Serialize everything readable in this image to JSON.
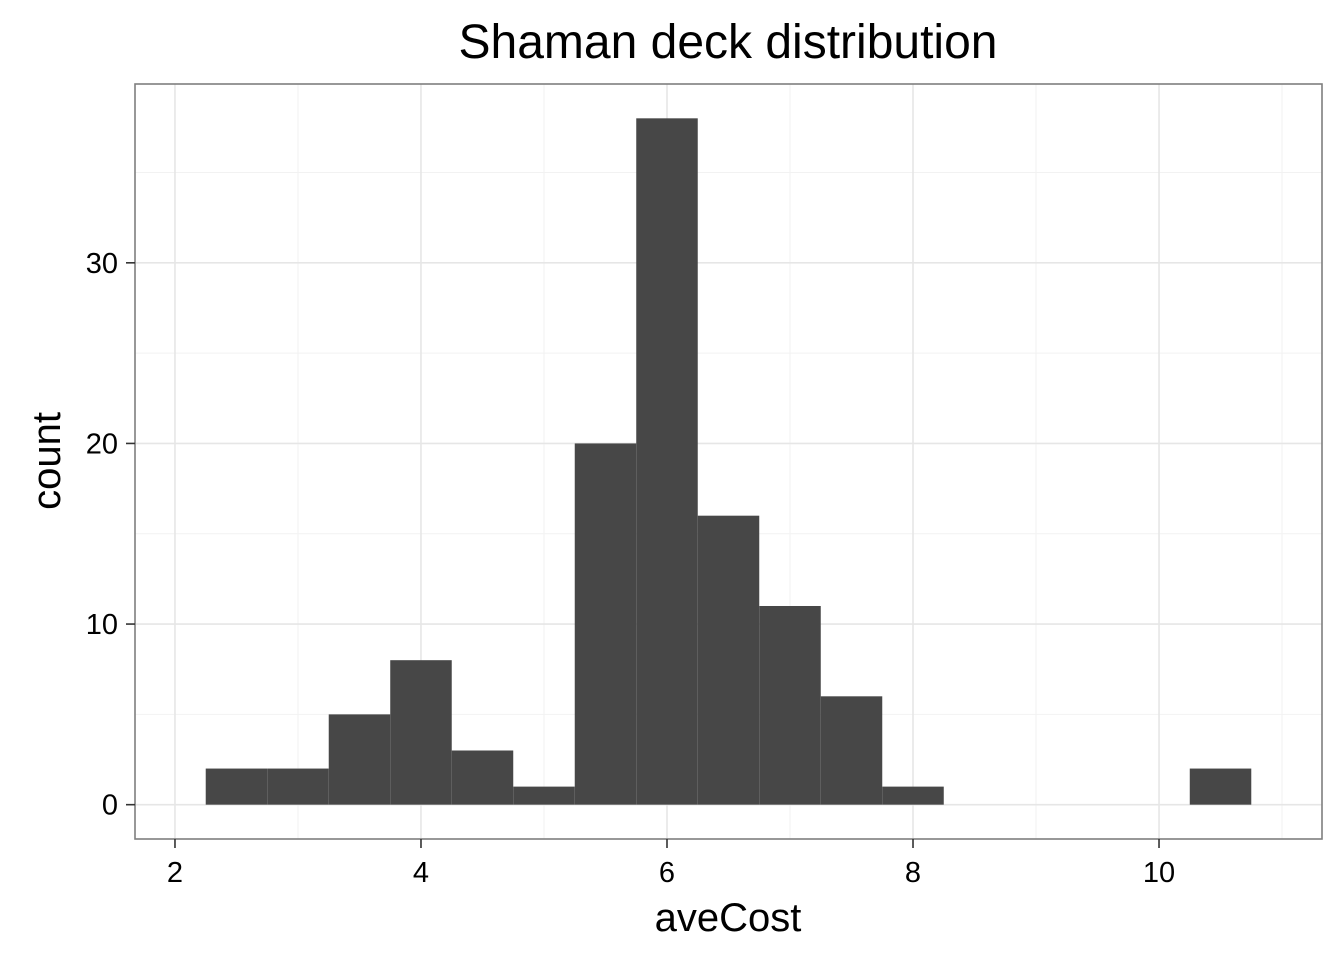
{
  "chart_data": {
    "type": "bar",
    "title": "Shaman deck distribution",
    "xlabel": "aveCost",
    "ylabel": "count",
    "binwidth": 0.5,
    "bins": [
      {
        "x_start": 2.25,
        "x_end": 2.75,
        "count": 2
      },
      {
        "x_start": 2.75,
        "x_end": 3.25,
        "count": 2
      },
      {
        "x_start": 3.25,
        "x_end": 3.75,
        "count": 5
      },
      {
        "x_start": 3.75,
        "x_end": 4.25,
        "count": 8
      },
      {
        "x_start": 4.25,
        "x_end": 4.75,
        "count": 3
      },
      {
        "x_start": 4.75,
        "x_end": 5.25,
        "count": 1
      },
      {
        "x_start": 5.25,
        "x_end": 5.75,
        "count": 20
      },
      {
        "x_start": 5.75,
        "x_end": 6.25,
        "count": 38
      },
      {
        "x_start": 6.25,
        "x_end": 6.75,
        "count": 16
      },
      {
        "x_start": 6.75,
        "x_end": 7.25,
        "count": 11
      },
      {
        "x_start": 7.25,
        "x_end": 7.75,
        "count": 6
      },
      {
        "x_start": 7.75,
        "x_end": 8.25,
        "count": 1
      },
      {
        "x_start": 10.25,
        "x_end": 10.75,
        "count": 2
      }
    ],
    "xlim": [
      1.675,
      11.325
    ],
    "ylim": [
      -1.9,
      39.9
    ],
    "x_ticks": [
      2,
      4,
      6,
      8,
      10
    ],
    "x_tick_labels": [
      "2",
      "4",
      "6",
      "8",
      "10"
    ],
    "y_ticks": [
      0,
      10,
      20,
      30
    ],
    "y_tick_labels": [
      "0",
      "10",
      "20",
      "30"
    ],
    "grid": true,
    "bar_color": "#474747",
    "panel_border_color": "#7f7f7f"
  }
}
